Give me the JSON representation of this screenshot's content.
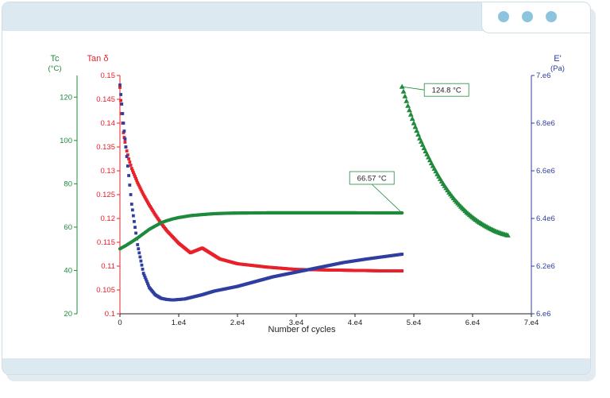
{
  "window": {
    "controls": [
      "dot-icon",
      "dot-icon",
      "dot-icon"
    ],
    "accent_color": "#8cc4de",
    "bar_color": "#dce9f1"
  },
  "chart_data": {
    "type": "scatter",
    "xlabel": "Number of cycles",
    "xlim": [
      0,
      70000
    ],
    "xticks": [
      "0",
      "1.e4",
      "2.e4",
      "3.e4",
      "4.e4",
      "5.e4",
      "6.e4",
      "7.e4"
    ],
    "axes": {
      "tan_delta": {
        "label": "Tan δ",
        "color": "#e8202a",
        "lim": [
          0.1,
          0.15
        ],
        "ticks": [
          "0.1",
          "0.105",
          "0.11",
          "0.115",
          "0.12",
          "0.125",
          "0.13",
          "0.135",
          "0.14",
          "0.145",
          "0.15"
        ]
      },
      "tc": {
        "label": "Tc",
        "unit": "(°C)",
        "color": "#1f8a3c",
        "lim": [
          20,
          130
        ],
        "ticks": [
          "20",
          "40",
          "60",
          "80",
          "100",
          "120"
        ]
      },
      "e_prime": {
        "label": "E'",
        "unit": "(Pa)",
        "color": "#2e3fa0",
        "lim": [
          6000000,
          7000000
        ],
        "ticks": [
          "6.e6",
          "6.2e6",
          "6.4e6",
          "6.6e6",
          "6.8e6",
          "7.e6"
        ]
      }
    },
    "series": [
      {
        "axis": "tan_delta",
        "color": "#e8202a",
        "marker": "square",
        "x": [
          0,
          300,
          600,
          1000,
          1500,
          2000,
          3000,
          4000,
          5000,
          6000,
          7000,
          8000,
          10000,
          12000,
          14000,
          17000,
          20000,
          25000,
          30000,
          35000,
          40000,
          45000,
          48000
        ],
        "y": [
          0.1475,
          0.142,
          0.138,
          0.135,
          0.1325,
          0.1305,
          0.1275,
          0.125,
          0.1228,
          0.1208,
          0.119,
          0.1174,
          0.1148,
          0.1128,
          0.1138,
          0.1115,
          0.1105,
          0.1098,
          0.1093,
          0.1092,
          0.1091,
          0.109,
          0.109
        ]
      },
      {
        "axis": "e_prime",
        "color": "#2e3fa0",
        "marker": "square",
        "x": [
          0,
          300,
          600,
          1000,
          1500,
          2000,
          3000,
          4000,
          5000,
          6000,
          7000,
          8000,
          9000,
          10000,
          11000,
          12000,
          14000,
          16000,
          18000,
          20000,
          23000,
          26000,
          30000,
          34000,
          38000,
          42000,
          45000,
          48000
        ],
        "y": [
          6960000,
          6880000,
          6800000,
          6700000,
          6580000,
          6460000,
          6290000,
          6170000,
          6110000,
          6080000,
          6065000,
          6060000,
          6058000,
          6060000,
          6062000,
          6068000,
          6080000,
          6095000,
          6105000,
          6115000,
          6135000,
          6155000,
          6175000,
          6195000,
          6215000,
          6230000,
          6240000,
          6250000
        ]
      },
      {
        "axis": "tc",
        "color": "#1f8a3c",
        "marker": "circle",
        "x": [
          0,
          1000,
          2000,
          3000,
          4000,
          5000,
          6000,
          7000,
          8000,
          9000,
          10000,
          12000,
          14000,
          16000,
          18000,
          20000,
          25000,
          30000,
          35000,
          40000,
          45000,
          48000
        ],
        "y": [
          50,
          51.5,
          53.2,
          55,
          57,
          59,
          60.5,
          62,
          63,
          63.8,
          64.4,
          65.3,
          65.8,
          66.2,
          66.4,
          66.5,
          66.6,
          66.6,
          66.6,
          66.6,
          66.57,
          66.57
        ]
      },
      {
        "axis": "tc",
        "color": "#1f8a3c",
        "marker": "triangle",
        "x": [
          48000,
          49000,
          50000,
          51000,
          52000,
          53000,
          54000,
          55000,
          56000,
          57000,
          58000,
          59000,
          60000,
          61000,
          62000,
          63000,
          64000,
          65000,
          66000
        ],
        "y": [
          124.8,
          116,
          108,
          101,
          95,
          89.5,
          84.5,
          80,
          76,
          72.5,
          69.5,
          66.8,
          64.5,
          62.5,
          60.8,
          59.3,
          58,
          57,
          56.2
        ]
      }
    ],
    "annotations": [
      {
        "text": "66.57 °C",
        "x": 48000,
        "y": 66.57,
        "axis": "tc"
      },
      {
        "text": "124.8 °C",
        "x": 48000,
        "y": 124.8,
        "axis": "tc"
      }
    ],
    "grid": false,
    "legend": "none"
  }
}
